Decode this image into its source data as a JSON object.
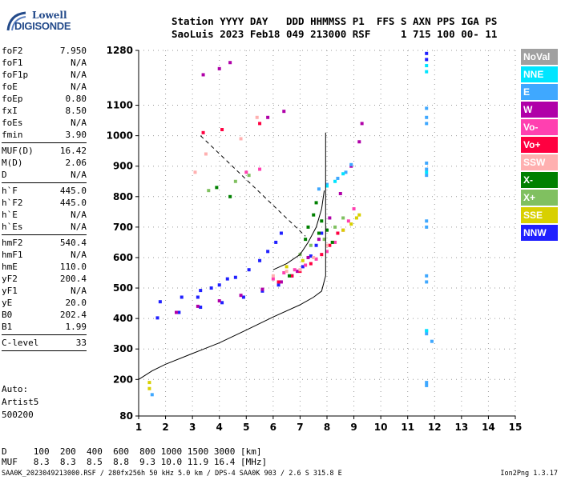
{
  "logo": {
    "line1": "Lowell",
    "line2": "DIGISONDE"
  },
  "header": {
    "line1": "Station YYYY DAY   DDD HHMMSS P1  FFS S AXN PPS IGA PS",
    "line2": "SaoLuis 2023 Feb18 049 213000 RSF     1 715 100 00- 11"
  },
  "params_group1": [
    {
      "k": "foF2",
      "v": "7.950"
    },
    {
      "k": "foF1",
      "v": "N/A"
    },
    {
      "k": "foF1p",
      "v": "N/A"
    },
    {
      "k": "foE",
      "v": "N/A"
    },
    {
      "k": "foEp",
      "v": "0.80"
    },
    {
      "k": "fxI",
      "v": "8.50"
    },
    {
      "k": "foEs",
      "v": "N/A"
    },
    {
      "k": "fmin",
      "v": "3.90"
    }
  ],
  "params_group2": [
    {
      "k": "MUF(D)",
      "v": "16.42"
    },
    {
      "k": "M(D)",
      "v": "2.06"
    },
    {
      "k": "D",
      "v": "N/A"
    }
  ],
  "params_group3": [
    {
      "k": "h`F",
      "v": "445.0"
    },
    {
      "k": "h`F2",
      "v": "445.0"
    },
    {
      "k": "h`E",
      "v": "N/A"
    },
    {
      "k": "h`Es",
      "v": "N/A"
    }
  ],
  "params_group4": [
    {
      "k": "hmF2",
      "v": "540.4"
    },
    {
      "k": "hmF1",
      "v": "N/A"
    },
    {
      "k": "hmE",
      "v": "110.0"
    },
    {
      "k": "yF2",
      "v": "200.4"
    },
    {
      "k": "yF1",
      "v": "N/A"
    },
    {
      "k": "yE",
      "v": "20.0"
    },
    {
      "k": "B0",
      "v": "202.4"
    },
    {
      "k": "B1",
      "v": "1.99"
    }
  ],
  "params_group5": [
    {
      "k": "C-level",
      "v": "33"
    }
  ],
  "auto": {
    "line1": "Auto:",
    "line2": "Artist5",
    "line3": "500200"
  },
  "footer": {
    "line1": "D     100  200  400  600  800 1000 1500 3000 [km]",
    "line2": "MUF   8.3  8.3  8.5  8.8  9.3 10.0 11.9 16.4 [MHz]"
  },
  "bottom_line": "SAA0K_2023049213000.RSF / 280fx256h 50 kHz 5.0 km / DPS-4 SAA0K 903 / 2.6 S 315.8 E",
  "version": "Ion2Png 1.3.17",
  "legend": [
    {
      "label": "NoVal",
      "color": "#a0a0a0"
    },
    {
      "label": "NNE",
      "color": "#00e5ff"
    },
    {
      "label": "E",
      "color": "#3fa8ff"
    },
    {
      "label": "W",
      "color": "#b000a8"
    },
    {
      "label": "Vo-",
      "color": "#ff40b0"
    },
    {
      "label": "Vo+",
      "color": "#ff0040"
    },
    {
      "label": "SSW",
      "color": "#ffb0b0"
    },
    {
      "label": "X-",
      "color": "#008000"
    },
    {
      "label": "X+",
      "color": "#80c060"
    },
    {
      "label": "SSE",
      "color": "#d8d000"
    },
    {
      "label": "NNW",
      "color": "#2020ff"
    }
  ],
  "chart_data": {
    "type": "scatter",
    "x_ticks": [
      1,
      2,
      3,
      4,
      5,
      6,
      7,
      8,
      9,
      10,
      11,
      12,
      13,
      14,
      15
    ],
    "y_ticks": [
      80,
      200,
      300,
      400,
      500,
      600,
      700,
      800,
      900,
      1000,
      1100,
      1280
    ],
    "xlim": [
      1,
      15
    ],
    "ylim": [
      80,
      1280
    ],
    "grid": true,
    "series": [
      {
        "color": "#2020ff",
        "points": [
          [
            1.7,
            402
          ],
          [
            2.5,
            420
          ],
          [
            3.3,
            437
          ],
          [
            4.1,
            452
          ],
          [
            4.9,
            470
          ],
          [
            5.6,
            490
          ],
          [
            6.2,
            510
          ],
          [
            6.7,
            540
          ],
          [
            7.1,
            570
          ],
          [
            7.4,
            605
          ],
          [
            7.6,
            640
          ],
          [
            7.8,
            680
          ],
          [
            1.8,
            455
          ],
          [
            2.6,
            470
          ],
          [
            3.3,
            492
          ],
          [
            4.0,
            510
          ],
          [
            4.6,
            535
          ],
          [
            5.1,
            560
          ],
          [
            5.5,
            590
          ],
          [
            5.8,
            620
          ],
          [
            6.1,
            650
          ],
          [
            6.3,
            680
          ],
          [
            3.2,
            470
          ],
          [
            3.7,
            500
          ],
          [
            4.3,
            530
          ],
          [
            11.7,
            1270
          ],
          [
            11.7,
            1250
          ]
        ]
      },
      {
        "color": "#b000a8",
        "points": [
          [
            2.4,
            420
          ],
          [
            3.2,
            440
          ],
          [
            4.0,
            458
          ],
          [
            4.8,
            476
          ],
          [
            5.6,
            496
          ],
          [
            6.3,
            520
          ],
          [
            6.9,
            555
          ],
          [
            7.3,
            600
          ],
          [
            7.7,
            660
          ],
          [
            8.1,
            730
          ],
          [
            8.5,
            810
          ],
          [
            8.9,
            900
          ],
          [
            9.2,
            980
          ],
          [
            9.3,
            1040
          ],
          [
            3.4,
            1200
          ],
          [
            4.0,
            1220
          ],
          [
            4.4,
            1240
          ],
          [
            5.8,
            1060
          ],
          [
            6.4,
            1080
          ]
        ]
      },
      {
        "color": "#ff40b0",
        "points": [
          [
            6.0,
            530
          ],
          [
            6.4,
            550
          ],
          [
            6.8,
            560
          ],
          [
            7.2,
            575
          ],
          [
            7.6,
            595
          ],
          [
            8.0,
            620
          ],
          [
            8.3,
            650
          ],
          [
            8.6,
            690
          ],
          [
            8.8,
            720
          ],
          [
            9.0,
            760
          ],
          [
            5.0,
            880
          ],
          [
            5.5,
            890
          ]
        ]
      },
      {
        "color": "#ff0040",
        "points": [
          [
            6.2,
            520
          ],
          [
            6.7,
            540
          ],
          [
            7.0,
            555
          ],
          [
            7.4,
            580
          ],
          [
            7.8,
            610
          ],
          [
            8.1,
            640
          ],
          [
            8.4,
            680
          ],
          [
            3.4,
            1010
          ],
          [
            4.1,
            1020
          ],
          [
            5.5,
            1040
          ]
        ]
      },
      {
        "color": "#008000",
        "points": [
          [
            7.3,
            700
          ],
          [
            7.5,
            740
          ],
          [
            7.6,
            780
          ],
          [
            7.8,
            720
          ],
          [
            8.0,
            690
          ],
          [
            7.2,
            660
          ],
          [
            7.7,
            680
          ],
          [
            8.2,
            650
          ],
          [
            6.6,
            540
          ],
          [
            3.9,
            830
          ],
          [
            4.4,
            800
          ]
        ]
      },
      {
        "color": "#80c060",
        "points": [
          [
            7.0,
            610
          ],
          [
            7.4,
            640
          ],
          [
            7.9,
            660
          ],
          [
            8.3,
            700
          ],
          [
            8.6,
            730
          ],
          [
            3.6,
            820
          ],
          [
            4.6,
            850
          ],
          [
            5.1,
            870
          ]
        ]
      },
      {
        "color": "#d8d000",
        "points": [
          [
            8.6,
            690
          ],
          [
            8.9,
            710
          ],
          [
            9.1,
            730
          ],
          [
            9.2,
            740
          ],
          [
            6.5,
            570
          ],
          [
            7.1,
            590
          ],
          [
            1.4,
            190
          ],
          [
            1.4,
            170
          ]
        ]
      },
      {
        "color": "#ffb0b0",
        "points": [
          [
            6.0,
            540
          ],
          [
            6.5,
            555
          ],
          [
            7.0,
            560
          ],
          [
            7.5,
            600
          ],
          [
            8.0,
            640
          ],
          [
            3.1,
            880
          ],
          [
            3.5,
            940
          ],
          [
            4.8,
            990
          ],
          [
            5.4,
            1060
          ]
        ]
      },
      {
        "color": "#3fa8ff",
        "points": [
          [
            7.7,
            825
          ],
          [
            8.0,
            840
          ],
          [
            8.4,
            860
          ],
          [
            8.7,
            880
          ],
          [
            8.9,
            905
          ],
          [
            11.7,
            1090
          ],
          [
            11.7,
            1060
          ],
          [
            11.7,
            1040
          ],
          [
            11.7,
            910
          ],
          [
            11.7,
            890
          ],
          [
            11.7,
            870
          ],
          [
            11.7,
            720
          ],
          [
            11.7,
            700
          ],
          [
            11.7,
            540
          ],
          [
            11.7,
            520
          ],
          [
            11.7,
            360
          ],
          [
            11.7,
            350
          ],
          [
            11.9,
            325
          ],
          [
            11.7,
            190
          ],
          [
            11.7,
            180
          ],
          [
            1.5,
            150
          ]
        ]
      },
      {
        "color": "#00e5ff",
        "points": [
          [
            8.0,
            835
          ],
          [
            8.3,
            850
          ],
          [
            8.6,
            875
          ],
          [
            11.7,
            1230
          ],
          [
            11.7,
            1210
          ],
          [
            11.7,
            880
          ],
          [
            11.7,
            360
          ]
        ]
      }
    ],
    "profile": [
      [
        1.0,
        200
      ],
      [
        1.5,
        228
      ],
      [
        2.0,
        250
      ],
      [
        3.0,
        285
      ],
      [
        4.0,
        320
      ],
      [
        5.0,
        362
      ],
      [
        6.0,
        405
      ],
      [
        7.0,
        445
      ],
      [
        7.5,
        470
      ],
      [
        7.8,
        490
      ],
      [
        7.95,
        540
      ],
      [
        7.95,
        700
      ],
      [
        7.95,
        1010
      ]
    ],
    "dashed_line": [
      [
        3.3,
        1000
      ],
      [
        7.2,
        670
      ]
    ],
    "virtual_trace": [
      [
        6.0,
        560
      ],
      [
        6.5,
        580
      ],
      [
        7.0,
        610
      ],
      [
        7.3,
        650
      ],
      [
        7.6,
        700
      ],
      [
        7.8,
        760
      ],
      [
        7.9,
        820
      ]
    ]
  }
}
